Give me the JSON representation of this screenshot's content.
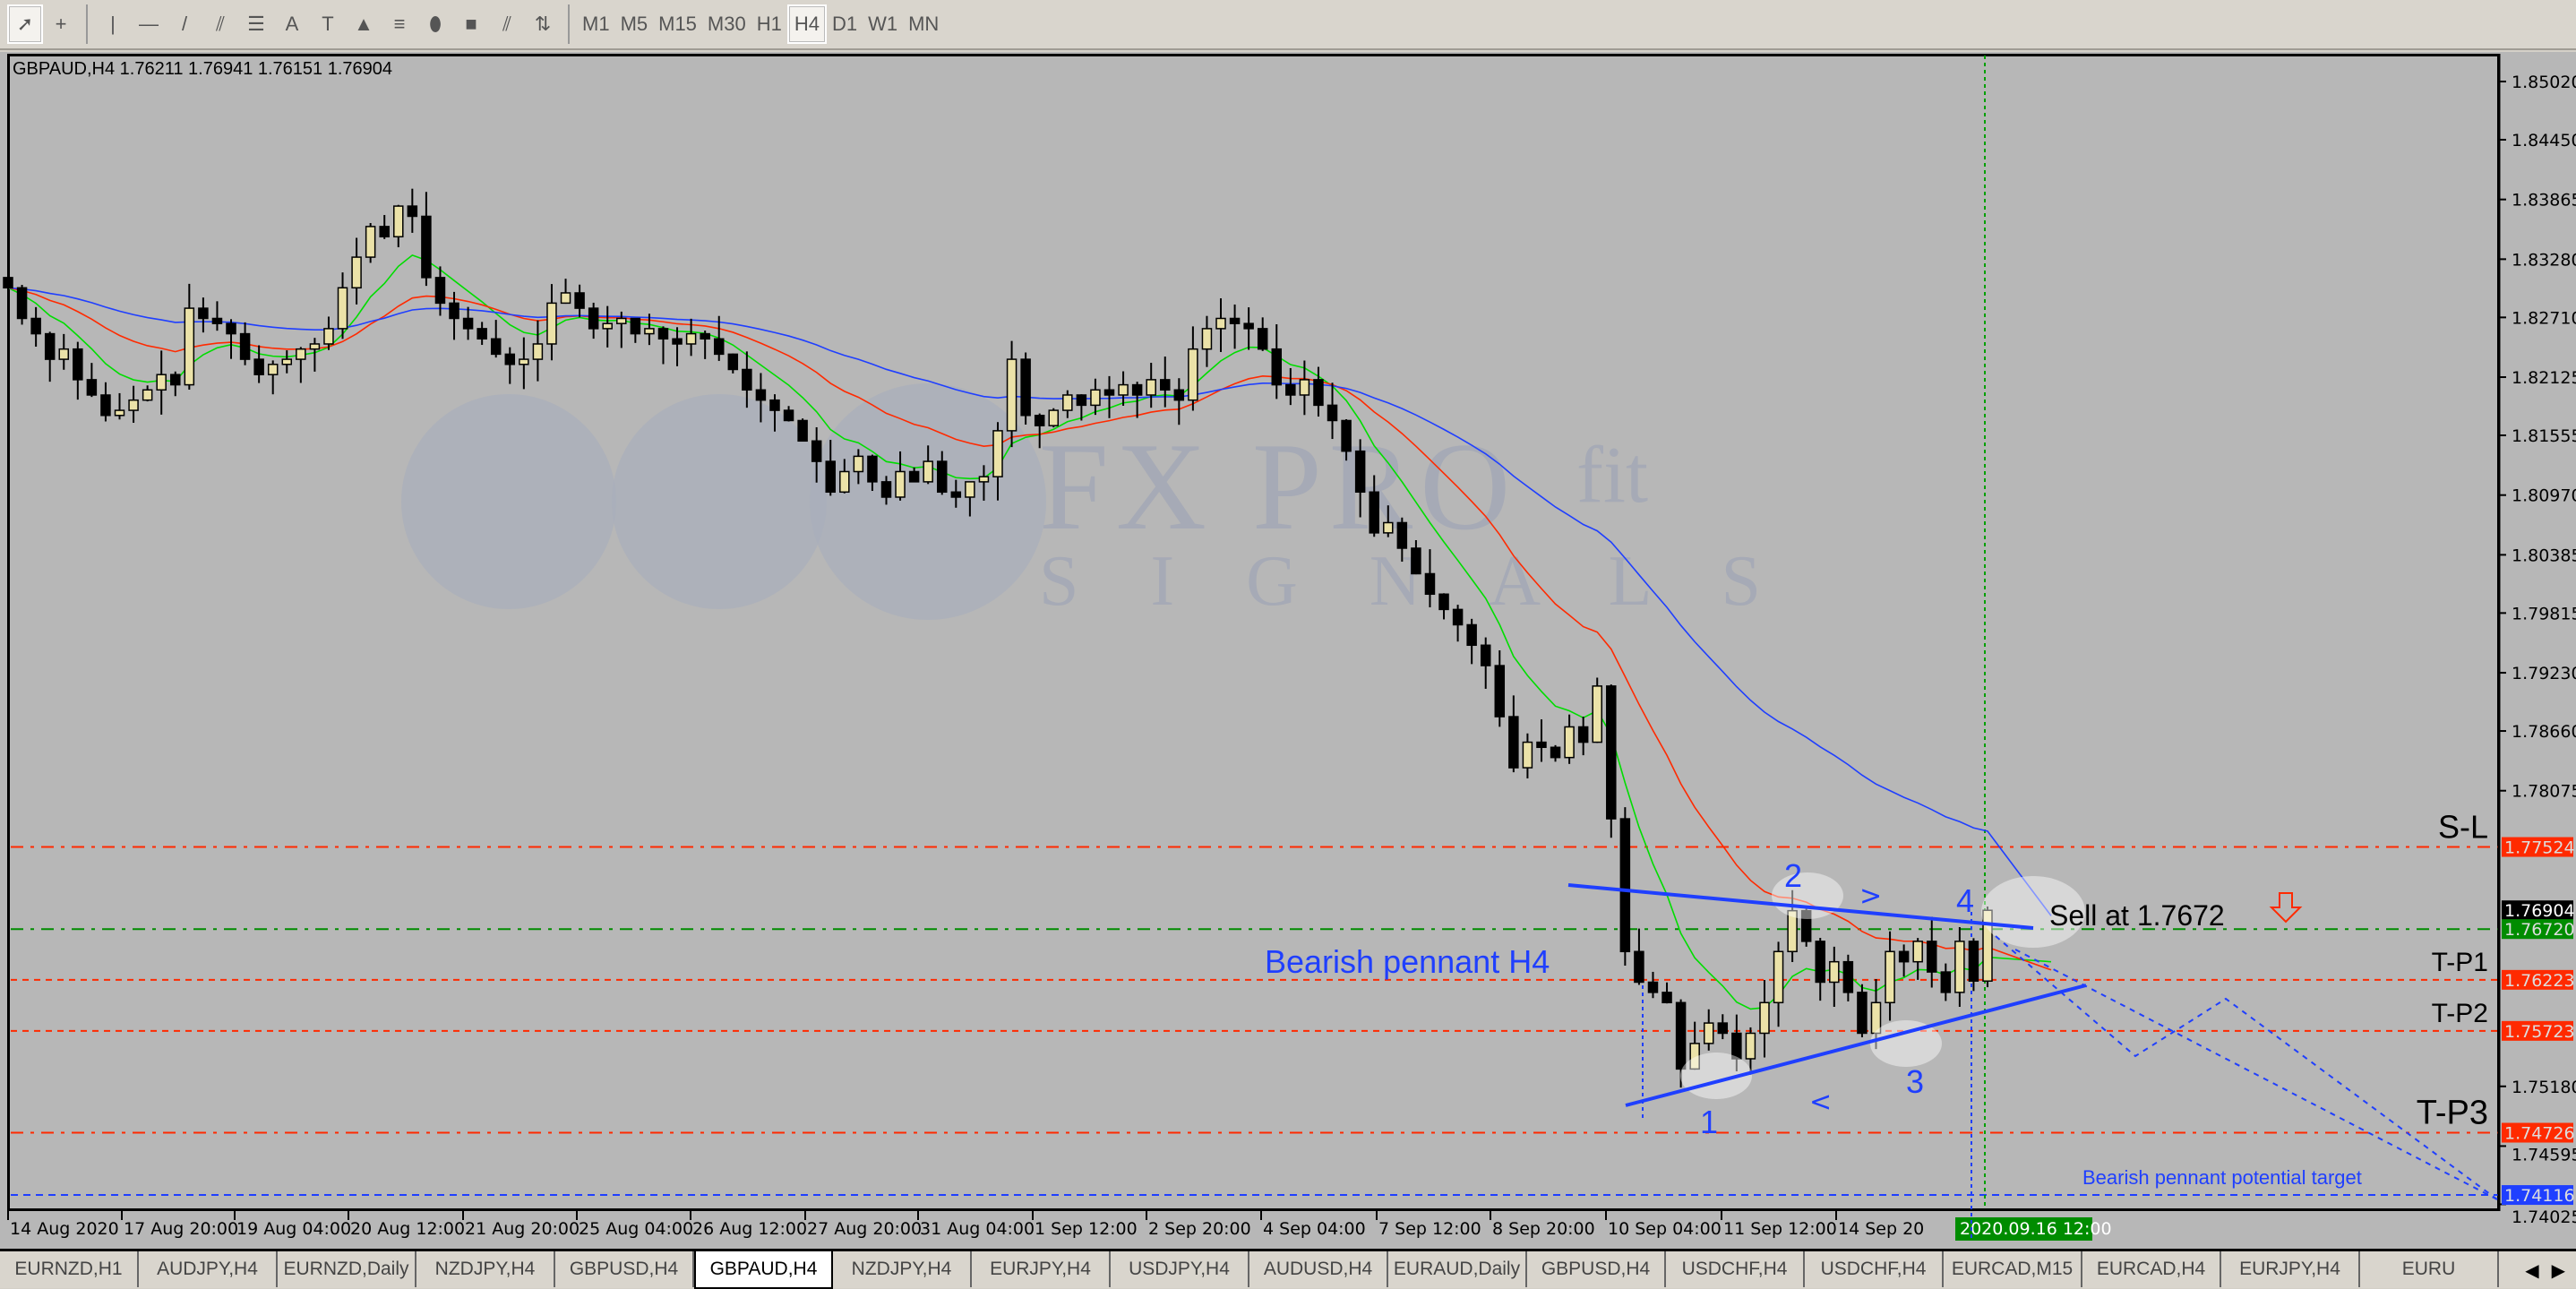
{
  "toolbar": {
    "tools": [
      {
        "name": "cursor-icon",
        "glyph": "➚"
      },
      {
        "name": "crosshair-icon",
        "glyph": "+"
      },
      {
        "name": "vertical-line-icon",
        "glyph": "|"
      },
      {
        "name": "horizontal-line-icon",
        "glyph": "—"
      },
      {
        "name": "trendline-icon",
        "glyph": "/"
      },
      {
        "name": "equidistant-channel-icon",
        "glyph": "⫽"
      },
      {
        "name": "fibonacci-icon",
        "glyph": "☰"
      },
      {
        "name": "text-icon",
        "glyph": "A"
      },
      {
        "name": "text-label-icon",
        "glyph": "T"
      },
      {
        "name": "triangle-icon",
        "glyph": "▲"
      },
      {
        "name": "fibo-fan-icon",
        "glyph": "≡"
      },
      {
        "name": "ellipse-icon",
        "glyph": "⬮"
      },
      {
        "name": "rectangle-icon",
        "glyph": "■"
      },
      {
        "name": "channel-icon",
        "glyph": "⫽"
      },
      {
        "name": "arrows-icon",
        "glyph": "⇅"
      }
    ],
    "timeframes": [
      "M1",
      "M5",
      "M15",
      "M30",
      "H1",
      "H4",
      "D1",
      "W1",
      "MN"
    ],
    "active_timeframe": "H4"
  },
  "chart": {
    "header": "GBPAUD,H4  1.76211 1.76941 1.76151 1.76904",
    "price_ticks": [
      "1.85020",
      "1.84450",
      "1.83865",
      "1.83280",
      "1.82710",
      "1.82125",
      "1.81555",
      "1.80970",
      "1.80385",
      "1.79815",
      "1.79230",
      "1.78660",
      "1.78075",
      "1.75180",
      "1.74595",
      "1.74025"
    ],
    "time_labels": [
      "14 Aug 2020",
      "17 Aug 20:00",
      "19 Aug 04:00",
      "20 Aug 12:00",
      "21 Aug 20:00",
      "25 Aug 04:00",
      "26 Aug 12:00",
      "27 Aug 20:00",
      "31 Aug 04:00",
      "1 Sep 12:00",
      "2 Sep 20:00",
      "4 Sep 04:00",
      "7 Sep 12:00",
      "8 Sep 20:00",
      "10 Sep 04:00",
      "11 Sep 12:00",
      "14 Sep 20"
    ],
    "crosshair_time": "2020.09.16 12:00",
    "levels": [
      {
        "label": "S-L",
        "price": "1.77524",
        "color": "#ff2a00"
      },
      {
        "label": "",
        "price": "1.76904",
        "color": "#000000"
      },
      {
        "label": "",
        "price": "1.76720",
        "color": "#008c00"
      },
      {
        "label": "T-P1",
        "price": "1.76223",
        "color": "#ff2a00"
      },
      {
        "label": "T-P2",
        "price": "1.75723",
        "color": "#ff2a00"
      },
      {
        "label": "T-P3",
        "price": "1.74726",
        "color": "#ff2a00"
      },
      {
        "label": "",
        "price": "1.74116",
        "color": "#1f3fff"
      }
    ],
    "annotations": {
      "pattern": "Bearish pennant H4",
      "sell": "Sell at 1.7672",
      "target": "Bearish pennant potential target",
      "points": [
        "1",
        "2",
        "3",
        "4"
      ],
      "lt": "<",
      "gt": ">"
    },
    "watermark": {
      "brand": "FX PRO",
      "suffix": "fit",
      "sub": "S I G N A L S"
    },
    "colors": {
      "bull": "#ebe2a8",
      "bear": "#000000",
      "ma_fast": "#00dd00",
      "ma_mid": "#ff2a00",
      "ma_slow": "#1f3fff",
      "annotation": "#1f3fff"
    }
  },
  "chart_data": {
    "type": "candlestick",
    "symbol": "GBPAUD",
    "timeframe": "H4",
    "ylim": [
      1.74025,
      1.8502
    ],
    "closes": [
      1.83,
      1.827,
      1.8255,
      1.823,
      1.824,
      1.821,
      1.8195,
      1.8175,
      1.818,
      1.819,
      1.82,
      1.8215,
      1.8205,
      1.828,
      1.827,
      1.8265,
      1.8255,
      1.823,
      1.8215,
      1.8225,
      1.823,
      1.824,
      1.8245,
      1.826,
      1.83,
      1.833,
      1.836,
      1.835,
      1.838,
      1.837,
      1.831,
      1.8285,
      1.827,
      1.826,
      1.825,
      1.8235,
      1.8225,
      1.823,
      1.8245,
      1.8285,
      1.8295,
      1.828,
      1.826,
      1.8265,
      1.827,
      1.8255,
      1.826,
      1.825,
      1.8245,
      1.8255,
      1.825,
      1.8235,
      1.822,
      1.82,
      1.819,
      1.818,
      1.817,
      1.815,
      1.813,
      1.81,
      1.812,
      1.8135,
      1.811,
      1.8095,
      1.812,
      1.811,
      1.813,
      1.81,
      1.8095,
      1.811,
      1.8115,
      1.816,
      1.823,
      1.8175,
      1.8165,
      1.818,
      1.8195,
      1.8185,
      1.82,
      1.8195,
      1.8205,
      1.8195,
      1.821,
      1.82,
      1.819,
      1.824,
      1.826,
      1.827,
      1.8265,
      1.826,
      1.824,
      1.8205,
      1.8195,
      1.821,
      1.8185,
      1.817,
      1.814,
      1.81,
      1.806,
      1.807,
      1.8045,
      1.802,
      1.8,
      1.7985,
      1.797,
      1.795,
      1.793,
      1.788,
      1.783,
      1.7855,
      1.785,
      1.784,
      1.787,
      1.7855,
      1.791,
      1.778,
      1.765,
      1.762,
      1.761,
      1.76,
      1.7535,
      1.756,
      1.758,
      1.757,
      1.7545,
      1.757,
      1.76,
      1.765,
      1.769,
      1.766,
      1.762,
      1.764,
      1.761,
      1.757,
      1.76,
      1.765,
      1.764,
      1.766,
      1.763,
      1.761,
      1.766,
      1.76211,
      1.76904
    ],
    "last_bar": {
      "open": 1.76211,
      "high": 1.76941,
      "low": 1.76151,
      "close": 1.76904
    }
  },
  "tabs": {
    "items": [
      "EURNZD,H1",
      "AUDJPY,H4",
      "EURNZD,Daily",
      "NZDJPY,H4",
      "GBPUSD,H4",
      "GBPAUD,H4",
      "NZDJPY,H4",
      "EURJPY,H4",
      "USDJPY,H4",
      "AUDUSD,H4",
      "EURAUD,Daily",
      "GBPUSD,H4",
      "USDCHF,H4",
      "USDCHF,H4",
      "EURCAD,M15",
      "EURCAD,H4",
      "EURJPY,H4",
      "EURU"
    ],
    "active": "GBPAUD,H4"
  }
}
